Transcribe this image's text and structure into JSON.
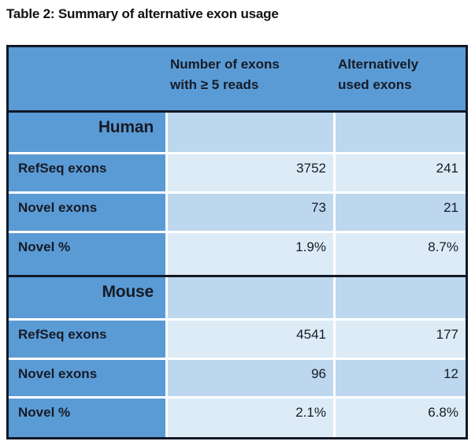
{
  "title": "Table 2: Summary of alternative exon usage",
  "table": {
    "header": {
      "empty": "",
      "col2_line1": "Number of exons",
      "col2_line2": "with ≥ 5 reads",
      "col3_line1": "Alternatively",
      "col3_line2": "used exons"
    },
    "sections": [
      {
        "name": "Human",
        "rows": [
          {
            "label": "RefSeq exons",
            "values": [
              "3752",
              "241"
            ]
          },
          {
            "label": "Novel exons",
            "values": [
              "73",
              "21"
            ]
          },
          {
            "label": "Novel %",
            "values": [
              "1.9%",
              "8.7%"
            ]
          }
        ]
      },
      {
        "name": "Mouse",
        "rows": [
          {
            "label": "RefSeq exons",
            "values": [
              "4541",
              "177"
            ]
          },
          {
            "label": "Novel exons",
            "values": [
              "96",
              "12"
            ]
          },
          {
            "label": "Novel %",
            "values": [
              "2.1%",
              "6.8%"
            ]
          }
        ]
      }
    ],
    "colors": {
      "accent": "#5B9BD5",
      "band_medium": "#BDD7EE",
      "band_light": "#DDEBF7",
      "border_dark": "#101826",
      "text_dark": "#161B26"
    }
  }
}
